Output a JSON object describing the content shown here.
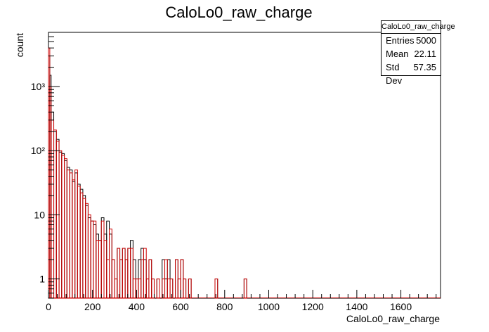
{
  "chart_data": {
    "type": "histogram",
    "title": "CaloLo0_raw_charge",
    "xlabel": "CaloLo0_raw_charge",
    "ylabel": "count",
    "xlim": [
      0,
      1780
    ],
    "ylim": [
      0.5,
      7000
    ],
    "log_y": true,
    "grid": false,
    "bin_width": 12,
    "x_tick_labels": [
      "0",
      "200",
      "400",
      "600",
      "800",
      "1000",
      "1200",
      "1400",
      "1600"
    ],
    "x_tick_values": [
      0,
      200,
      400,
      600,
      800,
      1000,
      1200,
      1400,
      1600
    ],
    "y_tick_labels": [
      "1",
      "10",
      "10²",
      "10³"
    ],
    "y_tick_values": [
      1,
      10,
      100,
      1000
    ],
    "series": [
      {
        "color": "#000000",
        "bins": [
          [
            0,
            3000
          ],
          [
            6,
            1500
          ],
          [
            12,
            400
          ],
          [
            24,
            200
          ],
          [
            36,
            150
          ],
          [
            48,
            95
          ],
          [
            60,
            90
          ],
          [
            72,
            70
          ],
          [
            84,
            55
          ],
          [
            96,
            50
          ],
          [
            108,
            33
          ],
          [
            120,
            45
          ],
          [
            132,
            30
          ],
          [
            144,
            25
          ],
          [
            156,
            20
          ],
          [
            168,
            14
          ],
          [
            180,
            9
          ],
          [
            192,
            8
          ],
          [
            204,
            7
          ],
          [
            216,
            5
          ],
          [
            228,
            4
          ],
          [
            240,
            9
          ],
          [
            252,
            5
          ],
          [
            264,
            8
          ],
          [
            276,
            5
          ],
          [
            288,
            2
          ],
          [
            300,
            1
          ],
          [
            312,
            3
          ],
          [
            324,
            2
          ],
          [
            336,
            3
          ],
          [
            348,
            2
          ],
          [
            360,
            3
          ],
          [
            372,
            4
          ],
          [
            384,
            2
          ],
          [
            396,
            1
          ],
          [
            408,
            2
          ],
          [
            420,
            3
          ],
          [
            432,
            2
          ],
          [
            444,
            1
          ],
          [
            456,
            2
          ],
          [
            468,
            1
          ],
          [
            480,
            0
          ],
          [
            492,
            1
          ],
          [
            504,
            0
          ],
          [
            516,
            2
          ],
          [
            528,
            1
          ],
          [
            540,
            2
          ],
          [
            552,
            1
          ],
          [
            564,
            0
          ],
          [
            576,
            2
          ],
          [
            588,
            1
          ],
          [
            600,
            2
          ],
          [
            612,
            1
          ],
          [
            624,
            0
          ],
          [
            636,
            1
          ],
          [
            648,
            0
          ],
          [
            756,
            1
          ],
          [
            768,
            0
          ],
          [
            888,
            1
          ],
          [
            900,
            0
          ]
        ]
      },
      {
        "color": "#cc0000",
        "bins": [
          [
            0,
            4000
          ],
          [
            6,
            1000
          ],
          [
            12,
            300
          ],
          [
            24,
            210
          ],
          [
            36,
            140
          ],
          [
            48,
            100
          ],
          [
            60,
            85
          ],
          [
            72,
            75
          ],
          [
            84,
            50
          ],
          [
            96,
            45
          ],
          [
            108,
            35
          ],
          [
            120,
            50
          ],
          [
            132,
            28
          ],
          [
            144,
            22
          ],
          [
            156,
            18
          ],
          [
            168,
            15
          ],
          [
            180,
            10
          ],
          [
            192,
            8
          ],
          [
            204,
            8
          ],
          [
            216,
            4
          ],
          [
            228,
            4
          ],
          [
            240,
            8
          ],
          [
            252,
            4
          ],
          [
            264,
            2
          ],
          [
            276,
            6
          ],
          [
            288,
            2
          ],
          [
            300,
            1
          ],
          [
            312,
            3
          ],
          [
            324,
            2
          ],
          [
            336,
            3
          ],
          [
            348,
            2
          ],
          [
            360,
            3
          ],
          [
            372,
            3
          ],
          [
            384,
            1
          ],
          [
            396,
            1
          ],
          [
            408,
            1
          ],
          [
            420,
            2
          ],
          [
            432,
            3
          ],
          [
            444,
            1
          ],
          [
            456,
            2
          ],
          [
            468,
            1
          ],
          [
            480,
            0
          ],
          [
            492,
            1
          ],
          [
            504,
            0
          ],
          [
            516,
            1
          ],
          [
            528,
            2
          ],
          [
            540,
            1
          ],
          [
            552,
            1
          ],
          [
            564,
            0
          ],
          [
            576,
            2
          ],
          [
            588,
            1
          ],
          [
            600,
            2
          ],
          [
            612,
            1
          ],
          [
            624,
            0
          ],
          [
            636,
            1
          ],
          [
            648,
            0
          ],
          [
            756,
            1
          ],
          [
            768,
            0
          ],
          [
            888,
            1
          ],
          [
            900,
            0
          ]
        ]
      }
    ],
    "stats": {
      "title": "CaloLo0_raw_charge",
      "entries_label": "Entries",
      "entries_value": "5000",
      "mean_label": "Mean",
      "mean_value": "22.11",
      "stddev_label": "Std Dev",
      "stddev_value": "57.35"
    }
  }
}
